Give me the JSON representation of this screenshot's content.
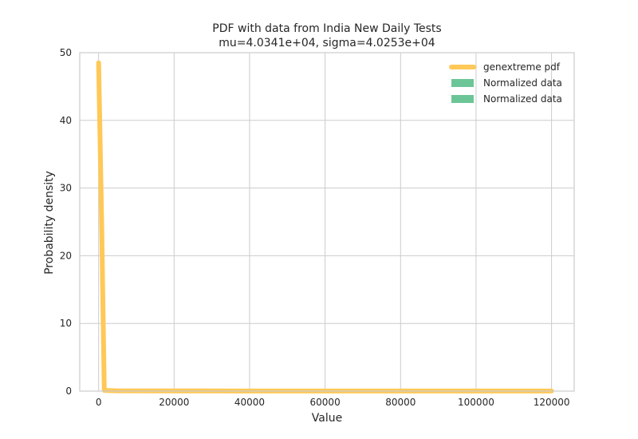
{
  "chart_data": {
    "type": "line",
    "title": "PDF with data from India New Daily Tests",
    "subtitle": "mu=4.0341e+04, sigma=4.0253e+04",
    "xlabel": "Value",
    "ylabel": "Probability density",
    "xlim": [
      -5000,
      126000
    ],
    "ylim": [
      0,
      50
    ],
    "xticks": [
      0,
      20000,
      40000,
      60000,
      80000,
      100000,
      120000
    ],
    "yticks": [
      0,
      10,
      20,
      30,
      40,
      50
    ],
    "grid": true,
    "legend_placement": "top-right",
    "series": [
      {
        "name": "genextreme pdf",
        "kind": "line",
        "color": "#ffc857",
        "x": [
          0,
          800,
          1500,
          5000,
          20000,
          40000,
          60000,
          80000,
          100000,
          120000
        ],
        "y": [
          48.5,
          25,
          0.1,
          0.05,
          0.03,
          0.02,
          0.02,
          0.02,
          0.02,
          0.02
        ]
      }
    ],
    "legend_entries": [
      {
        "label": "genextreme pdf",
        "kind": "line",
        "color": "#ffc857"
      },
      {
        "label": "Normalized data",
        "kind": "patch",
        "color": "#6cc596"
      },
      {
        "label": "Normalized data",
        "kind": "patch",
        "color": "#6cc596"
      }
    ]
  }
}
